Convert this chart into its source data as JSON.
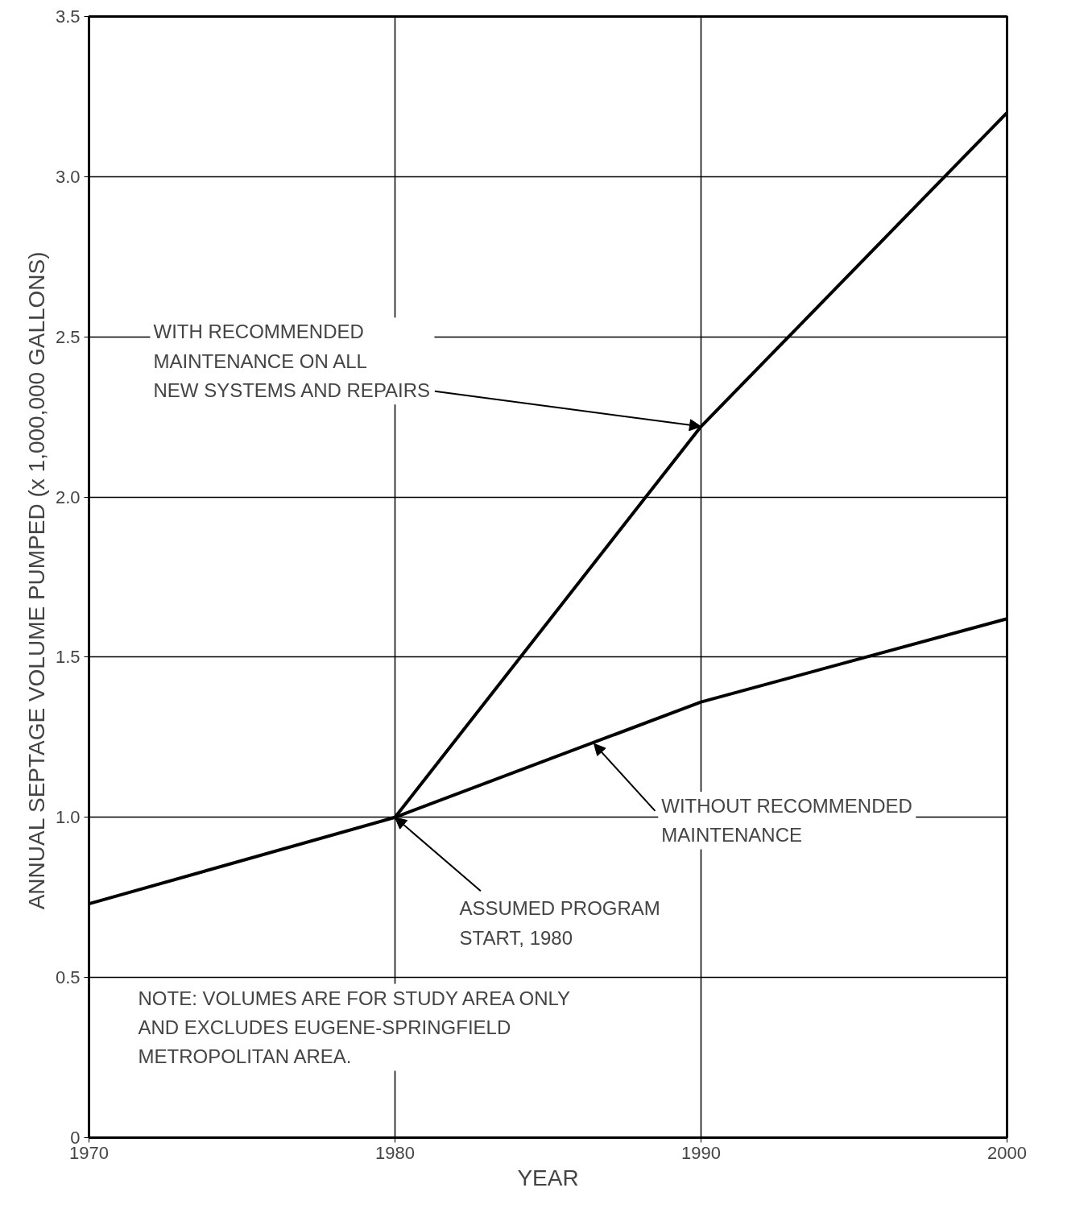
{
  "chart_data": {
    "type": "line",
    "xlabel": "YEAR",
    "ylabel": "ANNUAL SEPTAGE VOLUME PUMPED  (x 1,000,000 GALLONS)",
    "series": [
      {
        "color": "#000000",
        "x": [
          1980,
          1990,
          2000
        ],
        "values": [
          1.0,
          2.22,
          3.2
        ]
      },
      {
        "color": "#000000",
        "x": [
          1970,
          1980,
          1990,
          2000
        ],
        "values": [
          0.73,
          1.0,
          1.36,
          1.62
        ]
      }
    ],
    "xlim": [
      1970,
      2000
    ],
    "xticks": [
      1970,
      1980,
      1990,
      2000
    ],
    "ylim": [
      0,
      3.5
    ],
    "yticks": [
      0,
      {
        "value": 0.5,
        "label": "0.5"
      },
      {
        "value": 1,
        "label": "1.0"
      },
      {
        "value": 1.5,
        "label": "1.5"
      },
      {
        "value": 2,
        "label": "2.0"
      },
      {
        "value": 2.5,
        "label": "2.5"
      },
      {
        "value": 3,
        "label": "3.0"
      },
      {
        "value": 3.5,
        "label": "3.5"
      }
    ],
    "grid": true,
    "marker": "none",
    "line_style": "solid",
    "annotations": [
      {
        "text": "WITH RECOMMENDED\nMAINTENANCE ON ALL\nNEW SYSTEMS AND REPAIRS",
        "x": 1990,
        "y": 2.22
      },
      {
        "text": "WITHOUT RECOMMENDED\nMAINTENANCE",
        "x": 1986.5,
        "y": 1.23
      },
      {
        "text": "ASSUMED PROGRAM\nSTART, 1980",
        "x": 1980,
        "y": 1.0
      },
      "NOTE: VOLUMES ARE FOR STUDY AREA ONLY\n          AND EXCLUDES EUGENE-SPRINGFIELD\n          METROPOLITAN AREA."
    ]
  }
}
